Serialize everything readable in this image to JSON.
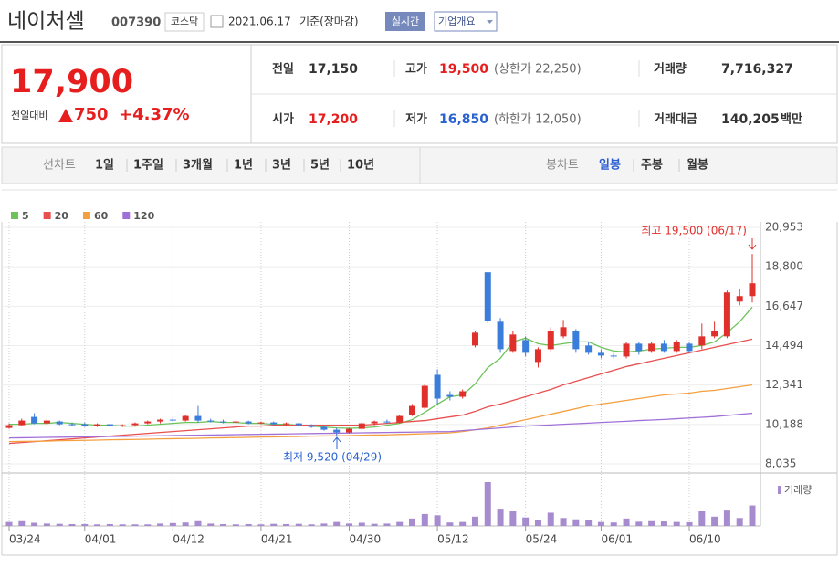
{
  "header": {
    "name": "네이처셀",
    "code": "007390",
    "market": "코스닥",
    "date": "2021.06.17",
    "basis": "기준(장마감)",
    "realtime": "실시간",
    "overview": "기업개요"
  },
  "quote": {
    "price": "17,900",
    "change_label": "전일대비",
    "change": "750",
    "percent": "+4.37%"
  },
  "stats": {
    "prev_label": "전일",
    "prev": "17,150",
    "high_label": "고가",
    "high": "19,500",
    "upper": "(상한가 22,250)",
    "volume_label": "거래량",
    "volume": "7,716,327",
    "open_label": "시가",
    "open": "17,200",
    "low_label": "저가",
    "low": "16,850",
    "lower": "(하한가 12,050)",
    "amount_label": "거래대금",
    "amount": "140,205",
    "amount_unit": "백만"
  },
  "tabs": {
    "line_label": "선차트",
    "periods": [
      "1일",
      "1주일",
      "3개월",
      "1년",
      "3년",
      "5년",
      "10년"
    ],
    "candle_label": "봉차트",
    "candle_periods": [
      "일봉",
      "주봉",
      "월봉"
    ]
  },
  "chart_data": {
    "type": "candlestick",
    "categories": [
      "03/24",
      null,
      null,
      null,
      null,
      null,
      "04/01",
      null,
      null,
      null,
      null,
      null,
      null,
      "04/12",
      null,
      null,
      null,
      null,
      null,
      null,
      "04/21",
      null,
      null,
      null,
      null,
      null,
      null,
      "04/30",
      null,
      null,
      null,
      null,
      null,
      null,
      "05/12",
      null,
      null,
      null,
      null,
      null,
      null,
      "05/24",
      null,
      null,
      null,
      null,
      null,
      "06/01",
      null,
      null,
      null,
      null,
      null,
      null,
      "06/10",
      null,
      null,
      null,
      null,
      null
    ],
    "open": [
      10000,
      10150,
      10600,
      10250,
      10350,
      10200,
      10200,
      10100,
      10200,
      10100,
      10150,
      10250,
      10350,
      10450,
      10400,
      10650,
      10400,
      10350,
      10300,
      10350,
      10250,
      10300,
      10200,
      10250,
      10150,
      10050,
      9900,
      9750,
      9950,
      10250,
      10350,
      10300,
      10700,
      11100,
      12900,
      11800,
      11700,
      14500,
      18500,
      15800,
      14200,
      14800,
      13600,
      14300,
      15000,
      15300,
      14500,
      14100,
      13950,
      13900,
      14600,
      14200,
      14600,
      14200,
      14600,
      14500,
      15000,
      15000,
      16900,
      17200
    ],
    "high": [
      10250,
      10500,
      10800,
      10500,
      10400,
      10300,
      10300,
      10250,
      10250,
      10200,
      10300,
      10400,
      10500,
      10600,
      10700,
      11200,
      10500,
      10450,
      10400,
      10400,
      10350,
      10350,
      10300,
      10300,
      10200,
      10100,
      10000,
      10000,
      10300,
      10400,
      10450,
      10700,
      11300,
      12400,
      13200,
      12000,
      12100,
      15300,
      18500,
      16000,
      15300,
      15000,
      14400,
      15500,
      15900,
      15400,
      14700,
      14300,
      14100,
      14700,
      14700,
      14700,
      14800,
      14800,
      14700,
      15700,
      15800,
      17500,
      17600,
      19500
    ],
    "low": [
      9950,
      10100,
      10200,
      10150,
      10150,
      10100,
      10050,
      10050,
      10050,
      10050,
      10100,
      10200,
      10250,
      10300,
      10350,
      10300,
      10300,
      10250,
      10250,
      10200,
      10200,
      10150,
      10150,
      10100,
      10000,
      9850,
      9520,
      9700,
      9900,
      10150,
      10250,
      10250,
      10650,
      11000,
      11300,
      11500,
      11600,
      14400,
      15700,
      14100,
      14100,
      13900,
      13300,
      14200,
      14900,
      14100,
      14000,
      13800,
      13800,
      13800,
      14000,
      14100,
      14100,
      14100,
      14100,
      14300,
      14900,
      14900,
      16700,
      16850
    ],
    "close": [
      10150,
      10400,
      10250,
      10400,
      10200,
      10150,
      10100,
      10200,
      10100,
      10150,
      10250,
      10350,
      10450,
      10400,
      10650,
      10400,
      10350,
      10300,
      10350,
      10250,
      10300,
      10200,
      10250,
      10150,
      10050,
      9900,
      9750,
      9950,
      10250,
      10350,
      10300,
      10650,
      11200,
      12300,
      11600,
      11700,
      12000,
      15200,
      15850,
      14300,
      15100,
      14100,
      14300,
      15300,
      15500,
      14300,
      14100,
      13950,
      13900,
      14600,
      14200,
      14600,
      14200,
      14700,
      14200,
      15000,
      15300,
      17400,
      17200,
      17900
    ],
    "up_color": "#e0302b",
    "down_color": "#3b7ddb",
    "series": [
      {
        "name": "5",
        "color": "#6cc35a",
        "values": [
          10200,
          10200,
          10250,
          10250,
          10300,
          10250,
          10200,
          10150,
          10150,
          10100,
          10100,
          10150,
          10200,
          10250,
          10300,
          10300,
          10350,
          10300,
          10300,
          10250,
          10250,
          10200,
          10200,
          10150,
          10100,
          10050,
          10000,
          9980,
          10000,
          10050,
          10150,
          10250,
          10450,
          10850,
          11300,
          11700,
          11800,
          12400,
          13300,
          13800,
          14700,
          14900,
          14600,
          14500,
          14600,
          14700,
          14700,
          14400,
          14200,
          14150,
          14200,
          14300,
          14350,
          14400,
          14400,
          14500,
          14700,
          15200,
          15800,
          16600
        ]
      },
      {
        "name": "20",
        "color": "#e8504f",
        "values": [
          9150,
          9200,
          9250,
          9300,
          9350,
          9400,
          9450,
          9500,
          9550,
          9600,
          9650,
          9700,
          9750,
          9800,
          9850,
          9900,
          9950,
          10000,
          10050,
          10100,
          10100,
          10150,
          10150,
          10150,
          10150,
          10150,
          10150,
          10150,
          10150,
          10200,
          10250,
          10300,
          10350,
          10400,
          10500,
          10600,
          10700,
          10900,
          11150,
          11300,
          11500,
          11700,
          11900,
          12100,
          12350,
          12550,
          12750,
          12950,
          13150,
          13350,
          13500,
          13650,
          13800,
          13950,
          14100,
          14250,
          14400,
          14550,
          14700,
          14850
        ]
      },
      {
        "name": "60",
        "color": "#f4a040",
        "values": [
          9250,
          9260,
          9270,
          9280,
          9300,
          9310,
          9320,
          9330,
          9350,
          9360,
          9370,
          9380,
          9400,
          9410,
          9420,
          9430,
          9450,
          9460,
          9470,
          9480,
          9500,
          9510,
          9520,
          9530,
          9550,
          9560,
          9570,
          9580,
          9600,
          9610,
          9620,
          9640,
          9660,
          9680,
          9700,
          9730,
          9800,
          9900,
          10000,
          10150,
          10300,
          10450,
          10600,
          10750,
          10900,
          11050,
          11200,
          11300,
          11400,
          11500,
          11600,
          11700,
          11800,
          11850,
          11900,
          12000,
          12050,
          12150,
          12250,
          12350
        ]
      },
      {
        "name": "120",
        "color": "#a070d8",
        "values": [
          9450,
          9460,
          9470,
          9480,
          9490,
          9500,
          9510,
          9520,
          9530,
          9540,
          9550,
          9560,
          9570,
          9580,
          9590,
          9600,
          9610,
          9620,
          9630,
          9640,
          9650,
          9660,
          9670,
          9680,
          9690,
          9700,
          9710,
          9720,
          9730,
          9740,
          9750,
          9760,
          9770,
          9780,
          9790,
          9800,
          9850,
          9900,
          9950,
          10000,
          10050,
          10100,
          10130,
          10160,
          10200,
          10230,
          10260,
          10300,
          10330,
          10360,
          10400,
          10430,
          10460,
          10500,
          10540,
          10580,
          10620,
          10680,
          10740,
          10800
        ]
      }
    ],
    "volume": {
      "label": "거래량",
      "color": "#a78bcf",
      "values": [
        1500000,
        1800000,
        1200000,
        900000,
        800000,
        700000,
        700000,
        600000,
        700000,
        600000,
        600000,
        600000,
        900000,
        1100000,
        1300000,
        1800000,
        900000,
        700000,
        600000,
        700000,
        600000,
        800000,
        700000,
        800000,
        600000,
        900000,
        1500000,
        900000,
        1200000,
        800000,
        900000,
        1500000,
        2800000,
        4500000,
        4000000,
        1300000,
        1500000,
        3500000,
        16500000,
        6500000,
        5500000,
        3200000,
        2200000,
        5000000,
        3000000,
        2500000,
        2200000,
        1500000,
        1300000,
        2800000,
        1600000,
        1800000,
        1700000,
        1500000,
        1400000,
        5500000,
        3500000,
        5800000,
        3000000,
        7716327
      ]
    },
    "ylim": [
      8035,
      20953
    ],
    "yticks": [
      {
        "value": 20953,
        "label": "20,953"
      },
      {
        "value": 18800,
        "label": "18,800"
      },
      {
        "value": 16647,
        "label": "16,647"
      },
      {
        "value": 14494,
        "label": "14,494"
      },
      {
        "value": 12341,
        "label": "12,341"
      },
      {
        "value": 10188,
        "label": "10,188"
      },
      {
        "value": 8035,
        "label": "8,035"
      }
    ],
    "grid": true,
    "annotations": [
      "최고 19,500 (06/17)",
      "최저 9,520 (04/29)"
    ]
  }
}
